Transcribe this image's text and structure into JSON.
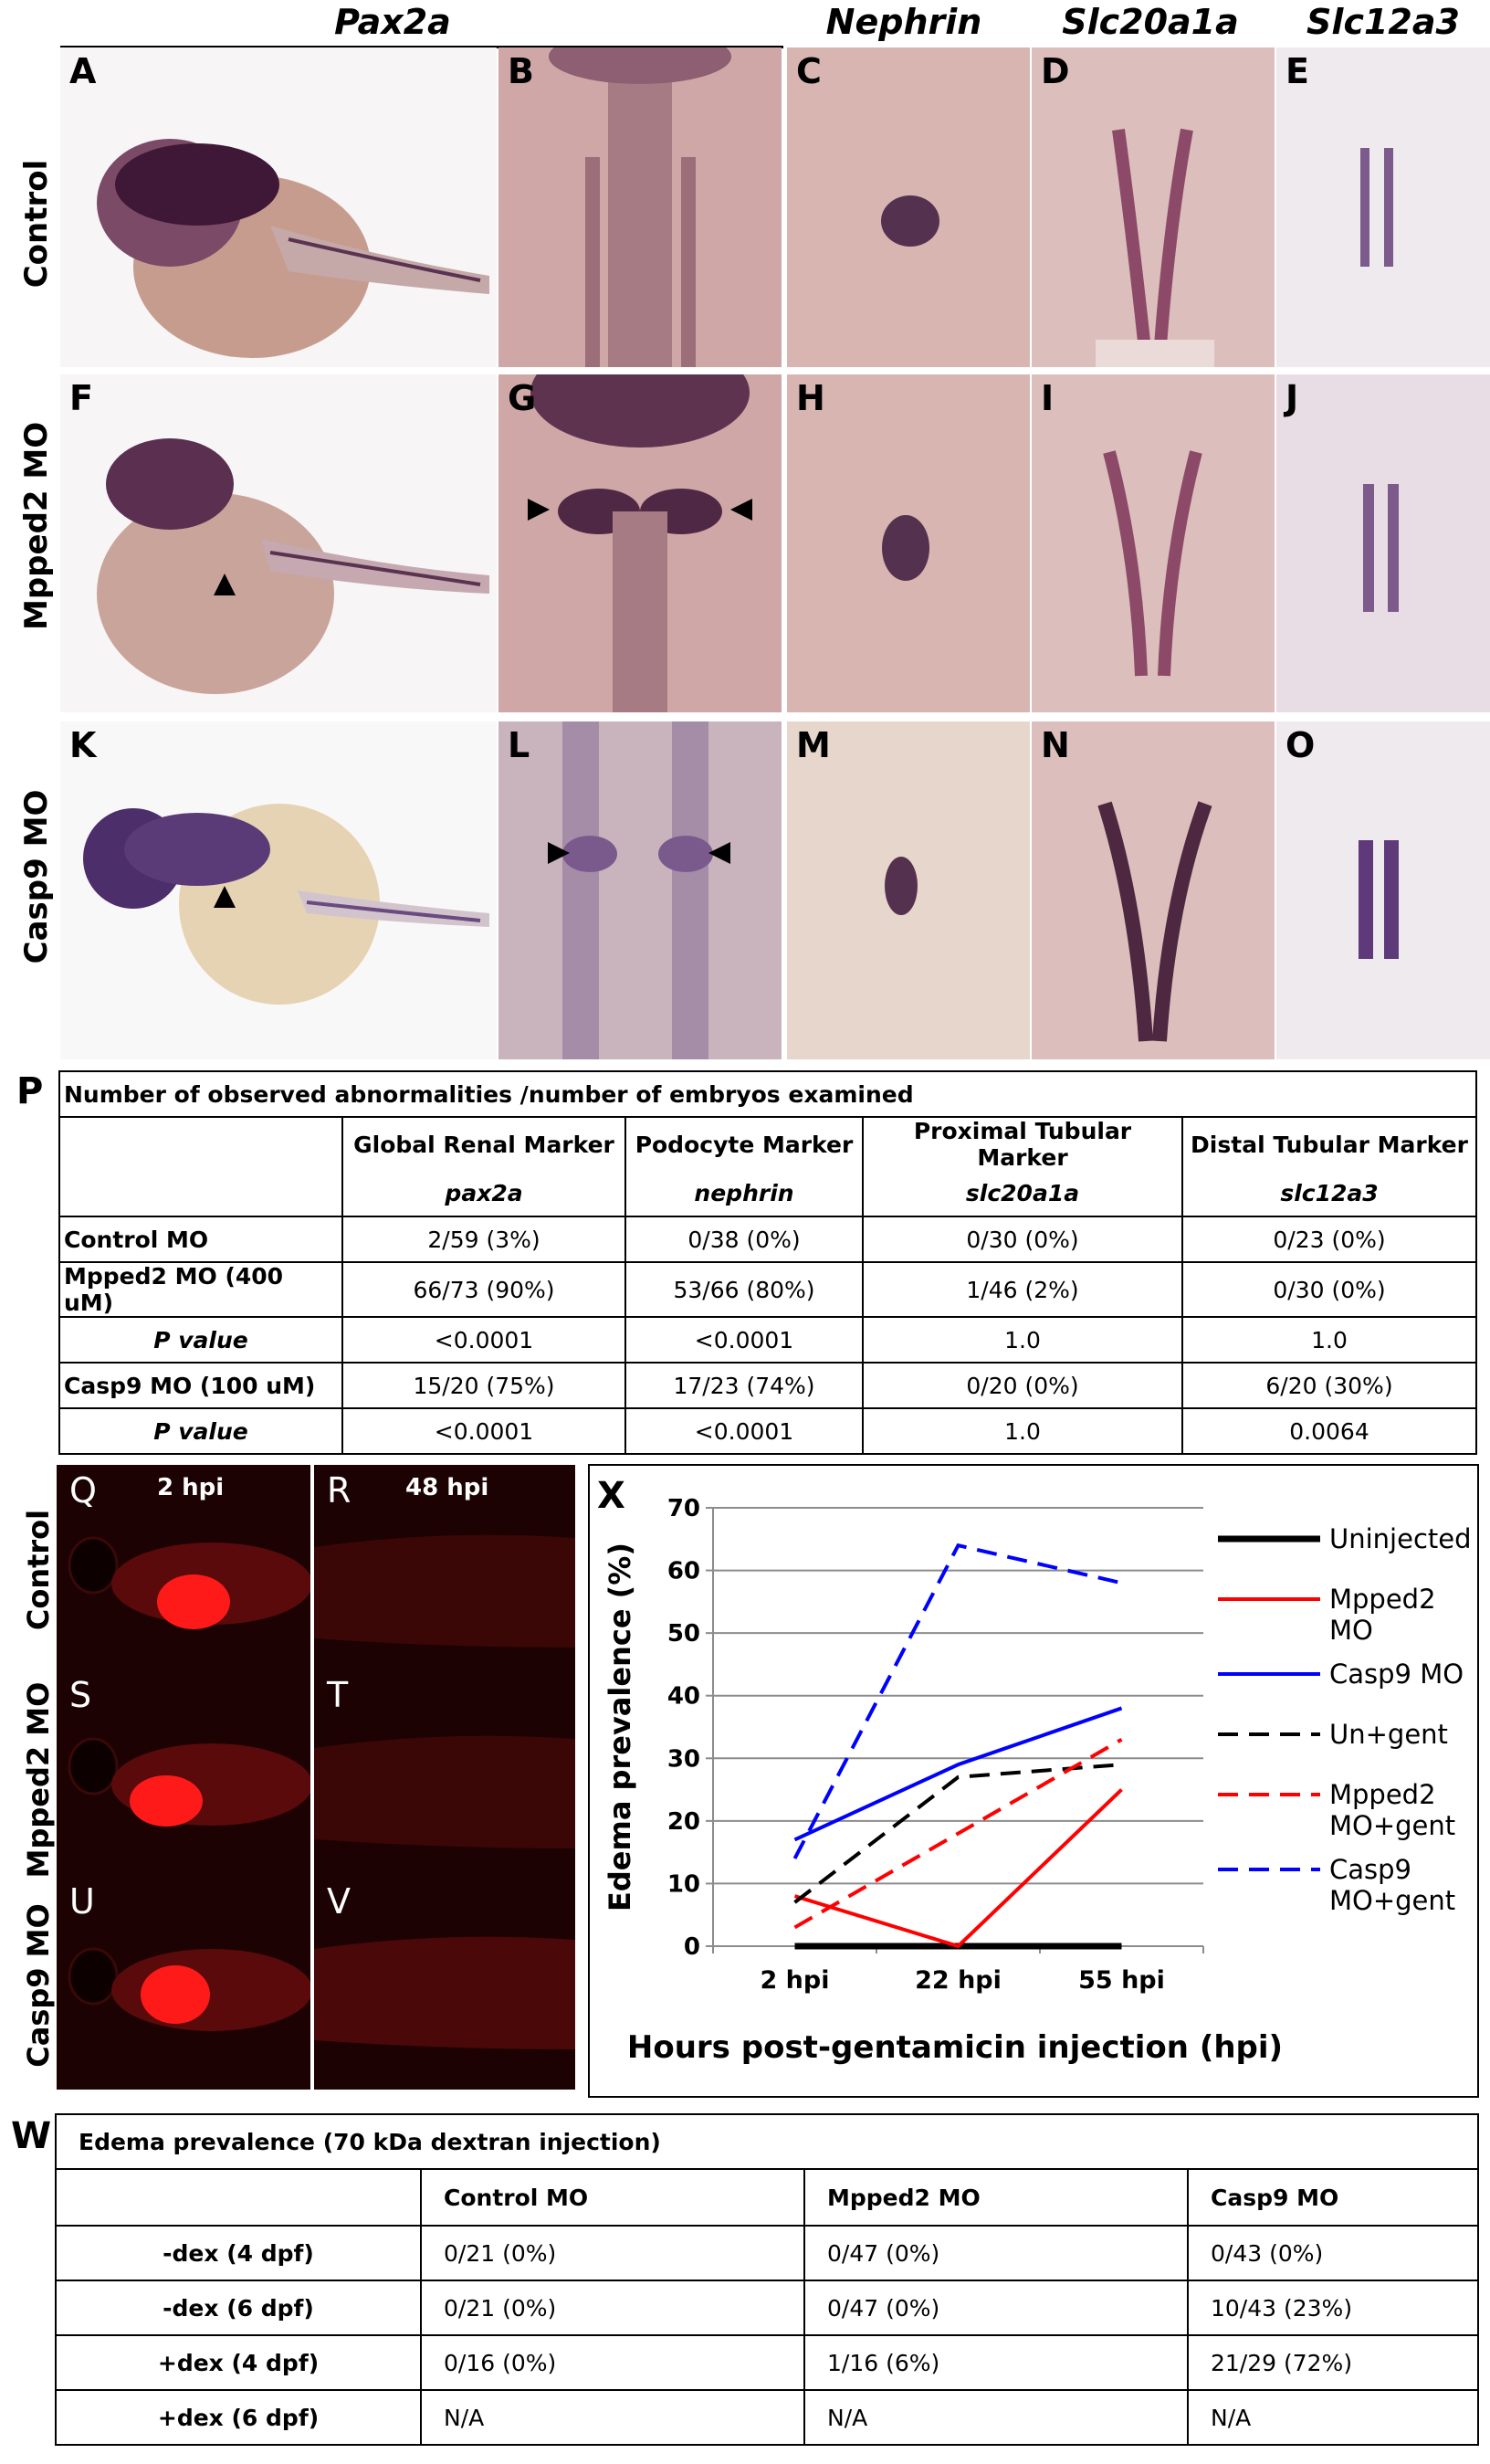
{
  "headers": {
    "pax2a": "Pax2a",
    "nephrin": "Nephrin",
    "slc20a1a": "Slc20a1a",
    "slc12a3": "Slc12a3"
  },
  "rows": [
    "Control",
    "Mpped2 MO",
    "Casp9 MO"
  ],
  "panel_letters": [
    "A",
    "B",
    "C",
    "D",
    "E",
    "F",
    "G",
    "H",
    "I",
    "J",
    "K",
    "L",
    "M",
    "N",
    "O"
  ],
  "table_p": {
    "letter": "P",
    "title": "Number of observed abnormalities /number of embryos examined",
    "col_titles": [
      "Global Renal Marker",
      "Podocyte Marker",
      "Proximal Tubular Marker",
      "Distal Tubular Marker"
    ],
    "col_genes": [
      "pax2a",
      "nephrin",
      "slc20a1a",
      "slc12a3"
    ],
    "rows": [
      {
        "label": "Control MO",
        "italic": false,
        "cells": [
          "2/59 (3%)",
          "0/38 (0%)",
          "0/30 (0%)",
          "0/23 (0%)"
        ]
      },
      {
        "label": "Mpped2 MO (400 uM)",
        "italic": false,
        "cells": [
          "66/73 (90%)",
          "53/66 (80%)",
          "1/46 (2%)",
          "0/30 (0%)"
        ]
      },
      {
        "label": "P value",
        "italic": true,
        "cells": [
          "<0.0001",
          "<0.0001",
          "1.0",
          "1.0"
        ]
      },
      {
        "label": "Casp9 MO (100 uM)",
        "italic": false,
        "cells": [
          "15/20 (75%)",
          "17/23 (74%)",
          "0/20 (0%)",
          "6/20 (30%)"
        ]
      },
      {
        "label": "P value",
        "italic": true,
        "cells": [
          "<0.0001",
          "<0.0001",
          "1.0",
          "0.0064"
        ]
      }
    ]
  },
  "fluor": {
    "letters": [
      "Q",
      "R",
      "S",
      "T",
      "U",
      "V"
    ],
    "times": [
      "2 hpi",
      "48 hpi"
    ],
    "rows": [
      "Control",
      "Mpped2 MO",
      "Casp9 MO"
    ]
  },
  "chart_data": {
    "type": "line",
    "letter": "X",
    "categories": [
      "2 hpi",
      "22 hpi",
      "55 hpi"
    ],
    "xlabel": "Hours post-gentamicin injection (hpi)",
    "ylabel": "Edema prevalence (%)",
    "ylim": [
      0,
      70
    ],
    "yticks": [
      0,
      10,
      20,
      30,
      40,
      50,
      60,
      70
    ],
    "grid": true,
    "legend_position": "right",
    "series": [
      {
        "name": "Uninjected",
        "legend": [
          "Uninjected"
        ],
        "color": "#000000",
        "dash": false,
        "values": [
          0,
          0,
          0
        ]
      },
      {
        "name": "Mpped2 MO",
        "legend": [
          "Mpped2",
          "MO"
        ],
        "color": "#ff0000",
        "dash": false,
        "values": [
          8,
          0,
          25
        ]
      },
      {
        "name": "Casp9 MO",
        "legend": [
          "Casp9 MO"
        ],
        "color": "#0000ff",
        "dash": false,
        "values": [
          17,
          29,
          38
        ]
      },
      {
        "name": "Un+gent",
        "legend": [
          "Un+gent"
        ],
        "color": "#000000",
        "dash": true,
        "values": [
          7,
          27,
          29
        ]
      },
      {
        "name": "Mpped2 MO+gent",
        "legend": [
          "Mpped2",
          "MO+gent"
        ],
        "color": "#ff0000",
        "dash": true,
        "values": [
          3,
          18,
          33
        ]
      },
      {
        "name": "Casp9 MO+gent",
        "legend": [
          "Casp9",
          "MO+gent"
        ],
        "color": "#0000ff",
        "dash": true,
        "values": [
          14,
          64,
          58
        ]
      }
    ]
  },
  "table_w": {
    "letter": "W",
    "title": "Edema prevalence (70 kDa dextran injection)",
    "cols": [
      "Control MO",
      "Mpped2 MO",
      "Casp9 MO"
    ],
    "rows": [
      {
        "label": "-dex (4 dpf)",
        "cells": [
          "0/21 (0%)",
          "0/47 (0%)",
          "0/43 (0%)"
        ]
      },
      {
        "label": "-dex (6 dpf)",
        "cells": [
          "0/21 (0%)",
          "0/47 (0%)",
          "10/43 (23%)"
        ]
      },
      {
        "label": "+dex (4 dpf)",
        "cells": [
          "0/16 (0%)",
          "1/16 (6%)",
          "21/29 (72%)"
        ]
      },
      {
        "label": "+dex (6 dpf)",
        "cells": [
          "N/A",
          "N/A",
          "N/A"
        ]
      }
    ]
  }
}
